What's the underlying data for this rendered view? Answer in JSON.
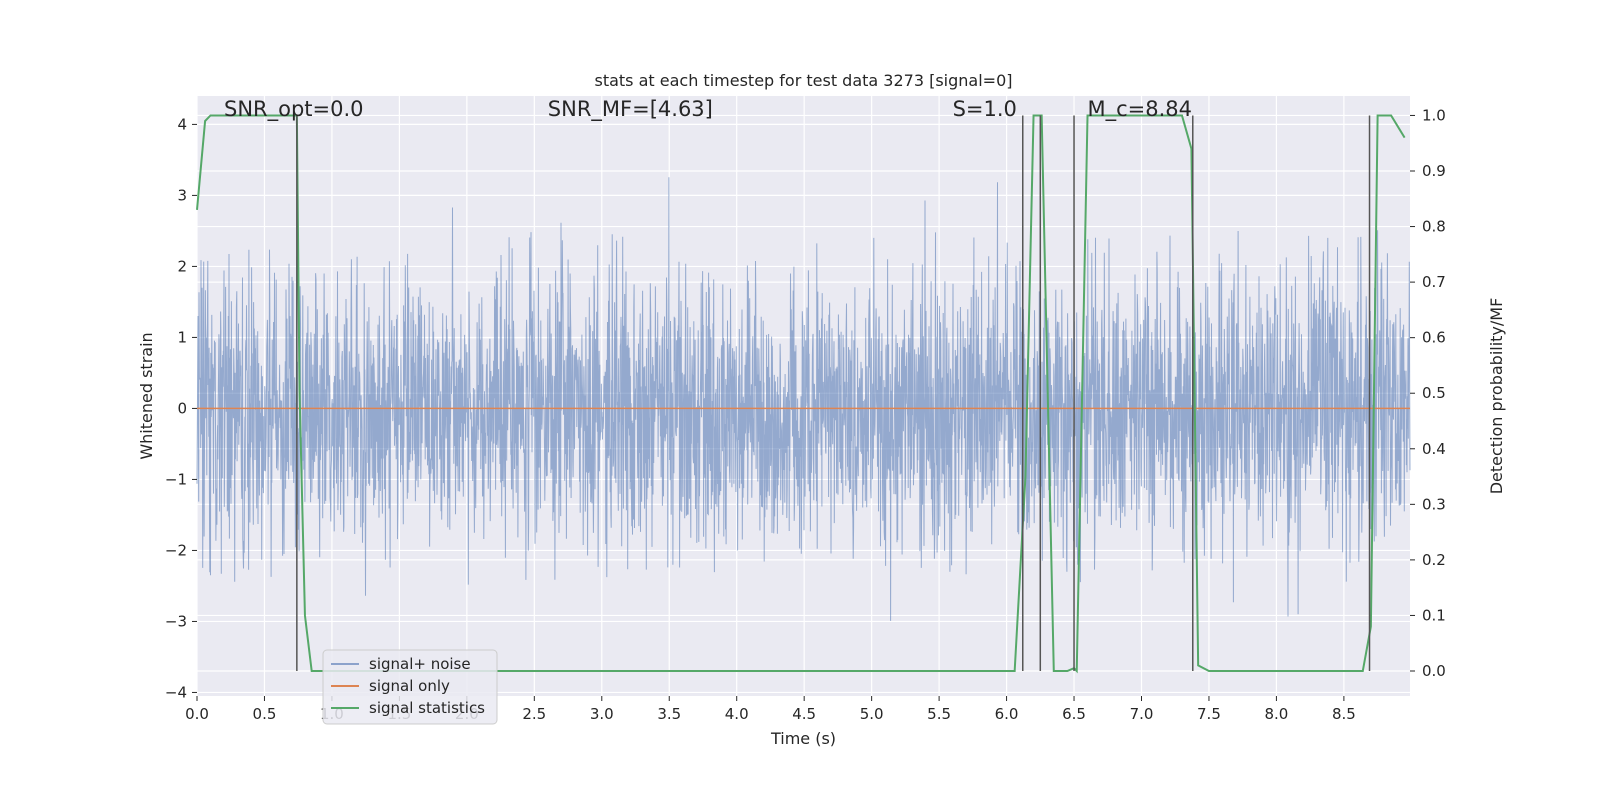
{
  "chart_data": {
    "type": "line",
    "title": "stats at each timestep for test data 3273 [signal=0]",
    "xlabel": "Time (s)",
    "ylabel": "Whitened strain",
    "ylabel_right": "Detection probability/MF",
    "xlim": [
      0.0,
      8.99
    ],
    "ylim": [
      -4.05,
      4.4
    ],
    "ylim_right": [
      -0.045,
      1.035
    ],
    "x_ticks": [
      "0.0",
      "0.5",
      "1.0",
      "1.5",
      "2.0",
      "2.5",
      "3.0",
      "3.5",
      "4.0",
      "4.5",
      "5.0",
      "5.5",
      "6.0",
      "6.5",
      "7.0",
      "7.5",
      "8.0",
      "8.5"
    ],
    "x_tick_values": [
      0.0,
      0.5,
      1.0,
      1.5,
      2.0,
      2.5,
      3.0,
      3.5,
      4.0,
      4.5,
      5.0,
      5.5,
      6.0,
      6.5,
      7.0,
      7.5,
      8.0,
      8.5
    ],
    "y_ticks": [
      "−4",
      "−3",
      "−2",
      "−1",
      "0",
      "1",
      "2",
      "3",
      "4"
    ],
    "y_tick_values": [
      -4,
      -3,
      -2,
      -1,
      0,
      1,
      2,
      3,
      4
    ],
    "y_ticks_right": [
      "0.0",
      "0.1",
      "0.2",
      "0.3",
      "0.4",
      "0.5",
      "0.6",
      "0.7",
      "0.8",
      "0.9",
      "1.0"
    ],
    "y_tick_values_right": [
      0.0,
      0.1,
      0.2,
      0.3,
      0.4,
      0.5,
      0.6,
      0.7,
      0.8,
      0.9,
      1.0
    ],
    "grid": true,
    "legend_placement": "lower-left",
    "annotations": [
      {
        "text": "SNR_opt=0.0",
        "x": 0.2,
        "y": 4.12
      },
      {
        "text": "SNR_MF=[4.63]",
        "x": 2.6,
        "y": 4.12
      },
      {
        "text": "S=1.0",
        "x": 5.6,
        "y": 4.12
      },
      {
        "text": "M_c=8.84",
        "x": 6.6,
        "y": 4.12
      }
    ],
    "series": [
      {
        "name": "signal+ noise",
        "color": "#4c72b0",
        "axis": "left",
        "noise_description": "dense whitened noise sampled over 0–8.99 s",
        "max_value": 4.0,
        "min_value": -3.7
      },
      {
        "name": "signal only",
        "color": "#dd8452",
        "axis": "left",
        "x": [
          0.0,
          8.99
        ],
        "y": [
          0.0,
          0.0
        ]
      },
      {
        "name": "signal statistics",
        "color": "#55a868",
        "axis": "right",
        "x": [
          0.0,
          0.06,
          0.1,
          0.7,
          0.74,
          0.76,
          0.8,
          0.85,
          6.06,
          6.14,
          6.2,
          6.26,
          6.35,
          6.45,
          6.5,
          6.52,
          6.6,
          7.3,
          7.37,
          7.42,
          7.5,
          8.64,
          8.7,
          8.75,
          8.85,
          8.95
        ],
        "y": [
          0.83,
          0.99,
          1.0,
          1.0,
          1.0,
          0.5,
          0.1,
          0.0,
          0.0,
          0.35,
          1.0,
          1.0,
          0.0,
          0.0,
          0.005,
          0.0,
          1.0,
          1.0,
          0.94,
          0.01,
          0.0,
          0.0,
          0.08,
          1.0,
          1.0,
          0.96
        ]
      }
    ],
    "vertical_markers": [
      0.74,
      6.12,
      6.25,
      6.5,
      7.38,
      8.69
    ],
    "marker_color": "#555555"
  },
  "legend": {
    "items": [
      {
        "label": "signal+ noise",
        "color": "#4c72b0"
      },
      {
        "label": "signal only",
        "color": "#dd8452"
      },
      {
        "label": "signal statistics",
        "color": "#55a868"
      }
    ]
  },
  "colors": {
    "plot_background": "#eaeaf2",
    "grid": "#ffffff",
    "noise_fill": "#9aabcf"
  }
}
